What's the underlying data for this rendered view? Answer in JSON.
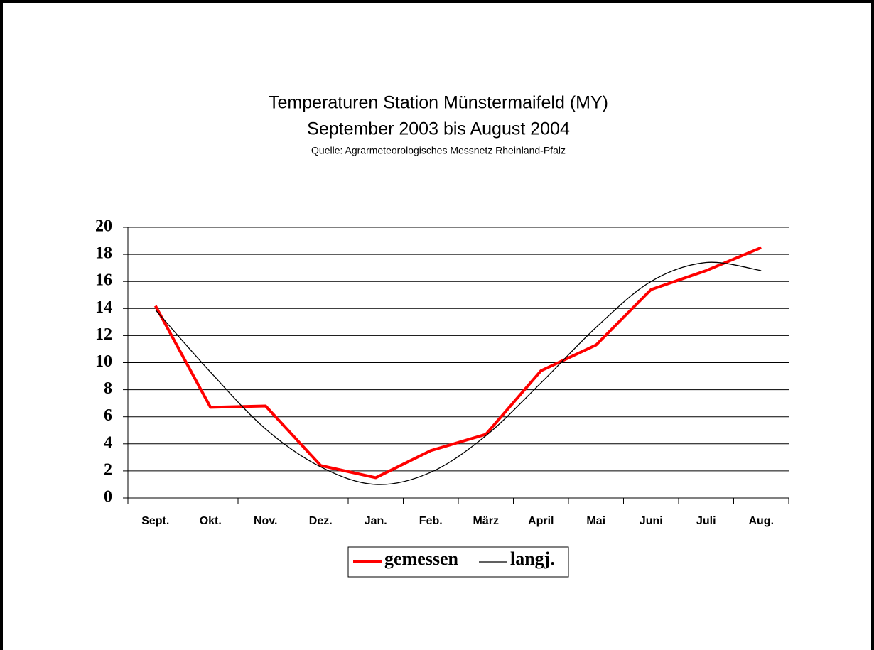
{
  "chart_data": {
    "type": "line",
    "title": "Temperaturen Station Münstermaifeld (MY)",
    "subtitle": "September 2003 bis August 2004",
    "source": "Quelle: Agrarmeteorologisches Messnetz Rheinland-Pfalz",
    "categories": [
      "Sept.",
      "Okt.",
      "Nov.",
      "Dez.",
      "Jan.",
      "Feb.",
      "März",
      "April",
      "Mai",
      "Juni",
      "Juli",
      "Aug."
    ],
    "series": [
      {
        "name": "gemessen",
        "color": "#ff0000",
        "smooth": false,
        "values": [
          14.2,
          6.7,
          6.8,
          2.4,
          1.5,
          3.5,
          4.7,
          9.4,
          11.3,
          15.4,
          16.8,
          18.5
        ]
      },
      {
        "name": "langj.",
        "color": "#000000",
        "smooth": true,
        "values": [
          13.9,
          9.3,
          5.1,
          2.3,
          1.0,
          1.9,
          4.6,
          8.5,
          12.6,
          16.0,
          17.4,
          16.8
        ]
      }
    ],
    "ylim": [
      0,
      20
    ],
    "yticks": [
      0,
      2,
      4,
      6,
      8,
      10,
      12,
      14,
      16,
      18,
      20
    ],
    "grid": true
  }
}
